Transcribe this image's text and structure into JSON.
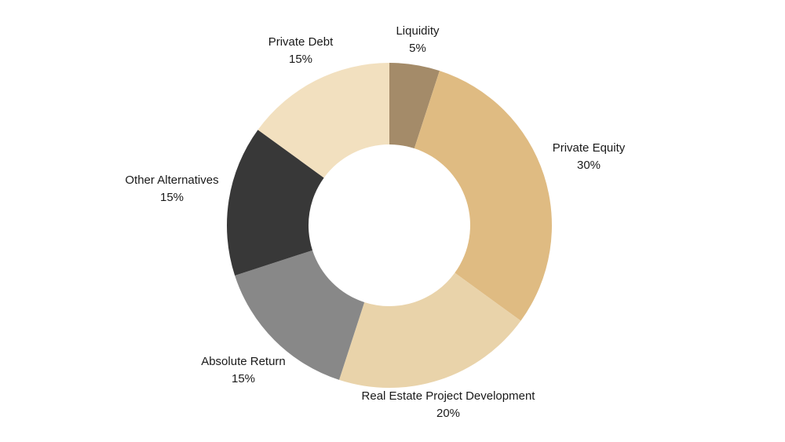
{
  "chart_data": {
    "type": "pie",
    "donut": true,
    "legend": "none",
    "slices": [
      {
        "name": "Liquidity",
        "value": 5,
        "display": "5%",
        "color": "#a48b69"
      },
      {
        "name": "Private Equity",
        "value": 30,
        "display": "30%",
        "color": "#dfbb82"
      },
      {
        "name": "Real Estate Project Development",
        "value": 20,
        "display": "20%",
        "color": "#e9d3aa"
      },
      {
        "name": "Absolute Return",
        "value": 15,
        "display": "15%",
        "color": "#888888"
      },
      {
        "name": "Other Alternatives",
        "value": 15,
        "display": "15%",
        "color": "#383838"
      },
      {
        "name": "Private Debt",
        "value": 15,
        "display": "15%",
        "color": "#f2e0bf"
      }
    ]
  }
}
